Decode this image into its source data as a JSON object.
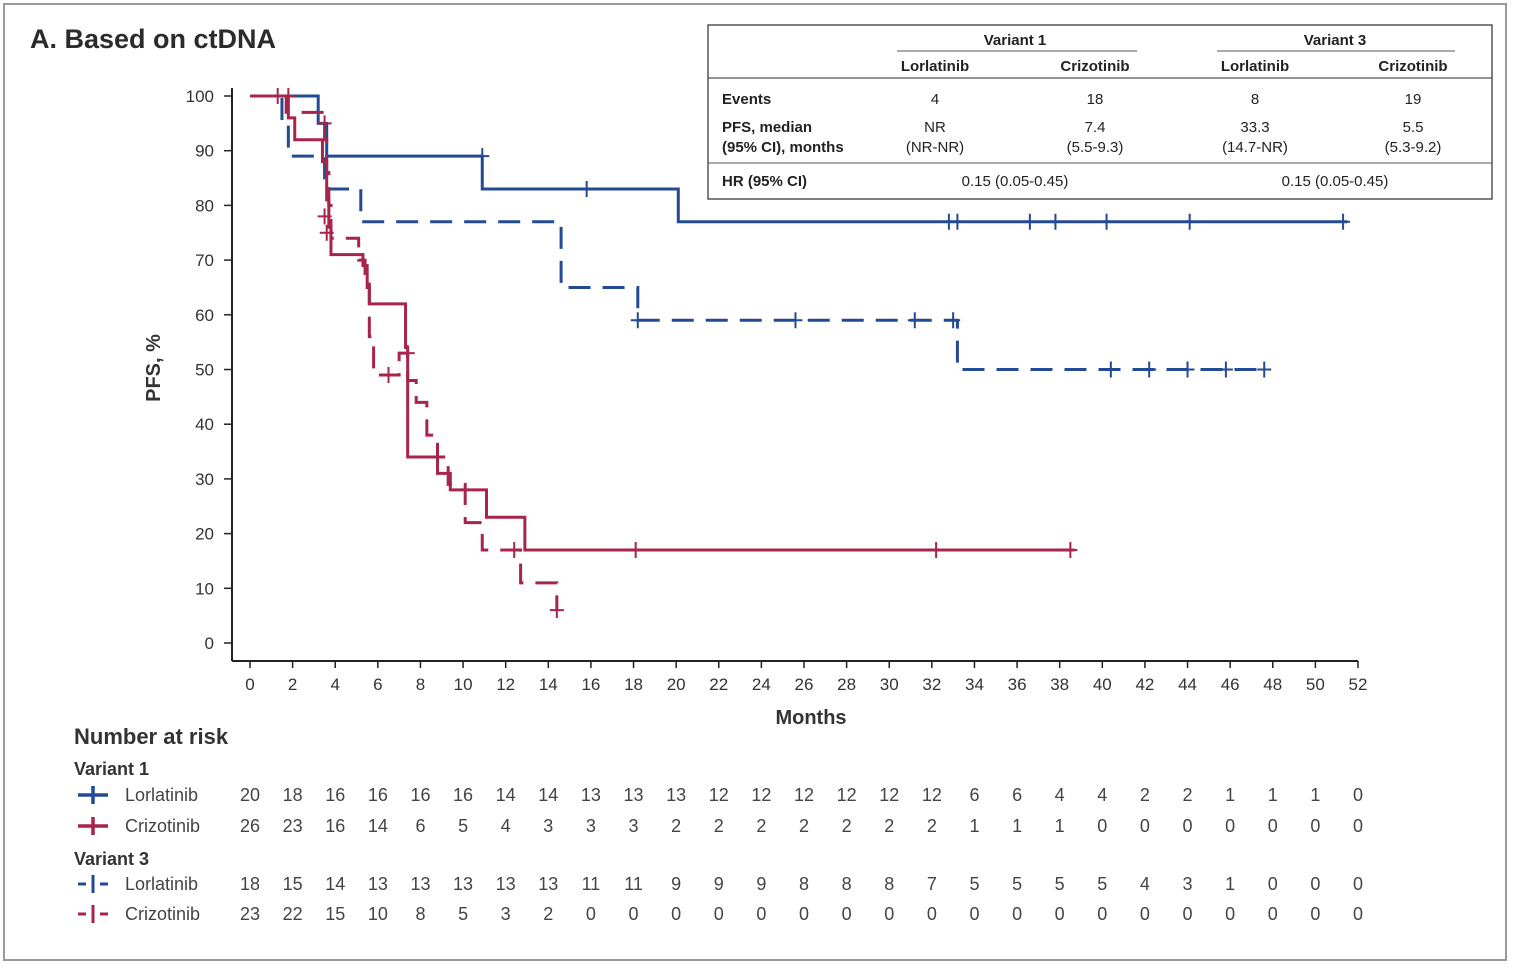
{
  "colors": {
    "lorlatinib": "#234a94",
    "crizotinib": "#a8244b"
  },
  "chart_data": {
    "type": "line",
    "title": "A. Based on ctDNA",
    "xlabel": "Months",
    "ylabel": "PFS, %",
    "xlim": [
      0,
      52
    ],
    "ylim": [
      0,
      100
    ],
    "x_ticks": [
      0,
      2,
      4,
      6,
      8,
      10,
      12,
      14,
      16,
      18,
      20,
      22,
      24,
      26,
      28,
      30,
      32,
      34,
      36,
      38,
      40,
      42,
      44,
      46,
      48,
      50,
      52
    ],
    "y_ticks": [
      0,
      10,
      20,
      30,
      40,
      50,
      60,
      70,
      80,
      90,
      100
    ],
    "series": [
      {
        "name": "Variant 1 Lorlatinib",
        "drug": "lorlatinib",
        "dashed": false,
        "steps": [
          [
            0,
            100
          ],
          [
            3.2,
            95
          ],
          [
            3.6,
            89
          ],
          [
            10.9,
            83
          ],
          [
            20.1,
            77
          ],
          [
            51.5,
            77
          ]
        ],
        "censors": [
          [
            10.9,
            89
          ],
          [
            15.8,
            83
          ],
          [
            32.8,
            77
          ],
          [
            33.2,
            77
          ],
          [
            36.6,
            77
          ],
          [
            37.8,
            77
          ],
          [
            40.2,
            77
          ],
          [
            44.1,
            77
          ],
          [
            51.3,
            77
          ]
        ]
      },
      {
        "name": "Variant 3 Lorlatinib",
        "drug": "lorlatinib",
        "dashed": false,
        "steps": [
          [
            0,
            100
          ],
          [
            1.5,
            95
          ],
          [
            1.8,
            89
          ],
          [
            3.5,
            83
          ],
          [
            5.2,
            77
          ],
          [
            14.6,
            65
          ],
          [
            18.2,
            59
          ],
          [
            33.2,
            50
          ],
          [
            47.6,
            50
          ]
        ],
        "censors": [
          [
            18.2,
            59
          ],
          [
            25.6,
            59
          ],
          [
            31.2,
            59
          ],
          [
            33.0,
            59
          ],
          [
            40.4,
            50
          ],
          [
            42.2,
            50
          ],
          [
            44.0,
            50
          ],
          [
            45.8,
            50
          ],
          [
            47.6,
            50
          ]
        ]
      },
      {
        "name": "Variant 1 Crizotinib",
        "drug": "crizotinib",
        "dashed": false,
        "steps": [
          [
            0,
            100
          ],
          [
            1.8,
            96
          ],
          [
            2.1,
            92
          ],
          [
            3.4,
            88
          ],
          [
            3.6,
            81
          ],
          [
            3.7,
            76
          ],
          [
            3.8,
            71
          ],
          [
            5.3,
            69
          ],
          [
            5.5,
            65
          ],
          [
            5.6,
            62
          ],
          [
            7.3,
            54
          ],
          [
            7.4,
            34
          ],
          [
            8.8,
            31
          ],
          [
            9.4,
            28
          ],
          [
            11.1,
            23
          ],
          [
            12.9,
            17
          ],
          [
            38.7,
            17
          ]
        ],
        "censors": [
          [
            1.8,
            100
          ],
          [
            18.1,
            17
          ],
          [
            32.2,
            17
          ],
          [
            38.5,
            17
          ]
        ]
      },
      {
        "name": "Variant 3 Crizotinib",
        "drug": "crizotinib",
        "dashed": false,
        "steps": [
          [
            0,
            100
          ],
          [
            1.7,
            97
          ],
          [
            3.5,
            92
          ],
          [
            3.6,
            86
          ],
          [
            3.7,
            80
          ],
          [
            3.8,
            74
          ],
          [
            5.1,
            70
          ],
          [
            5.4,
            66
          ],
          [
            5.6,
            56
          ],
          [
            5.8,
            49
          ],
          [
            7.0,
            53
          ],
          [
            7.4,
            48
          ],
          [
            7.8,
            44
          ],
          [
            8.3,
            38
          ],
          [
            8.8,
            34
          ],
          [
            9.3,
            29
          ],
          [
            10.1,
            22
          ],
          [
            10.9,
            17
          ],
          [
            12.7,
            11
          ],
          [
            14.4,
            6
          ],
          [
            14.4,
            6
          ]
        ],
        "censors": [
          [
            1.3,
            100
          ],
          [
            3.5,
            95
          ],
          [
            3.5,
            78
          ],
          [
            3.6,
            75
          ],
          [
            6.5,
            49
          ],
          [
            7.4,
            53
          ],
          [
            12.4,
            17
          ],
          [
            14.4,
            6
          ]
        ]
      }
    ]
  },
  "summary_table": {
    "group_headers": [
      "Variant 1",
      "Variant 3"
    ],
    "col_headers": [
      "Lorlatinib",
      "Crizotinib",
      "Lorlatinib",
      "Crizotinib"
    ],
    "row_events_label": "Events",
    "events": [
      "4",
      "18",
      "8",
      "19"
    ],
    "row_pfs_label_1": "PFS, median",
    "row_pfs_label_2": "(95% CI), months",
    "pfs_median": [
      "NR",
      "7.4",
      "33.3",
      "5.5"
    ],
    "pfs_ci": [
      "(NR-NR)",
      "(5.5-9.3)",
      "(14.7-NR)",
      "(5.3-9.2)"
    ],
    "row_hr_label": "HR (95% CI)",
    "hr": [
      "0.15 (0.05-0.45)",
      "0.15 (0.05-0.45)"
    ]
  },
  "risk_table": {
    "heading": "Number at risk",
    "groups": [
      {
        "label": "Variant 1",
        "rows": [
          {
            "drug": "lorlatinib",
            "dashed": false,
            "label": "Lorlatinib",
            "values": [
              "20",
              "18",
              "16",
              "16",
              "16",
              "16",
              "14",
              "14",
              "13",
              "13",
              "13",
              "12",
              "12",
              "12",
              "12",
              "12",
              "12",
              "6",
              "6",
              "4",
              "4",
              "2",
              "2",
              "1",
              "1",
              "1",
              "0"
            ]
          },
          {
            "drug": "crizotinib",
            "dashed": false,
            "label": "Crizotinib",
            "values": [
              "26",
              "23",
              "16",
              "14",
              "6",
              "5",
              "4",
              "3",
              "3",
              "3",
              "2",
              "2",
              "2",
              "2",
              "2",
              "2",
              "2",
              "1",
              "1",
              "1",
              "0",
              "0",
              "0",
              "0",
              "0",
              "0",
              "0"
            ]
          }
        ]
      },
      {
        "label": "Variant 3",
        "rows": [
          {
            "drug": "lorlatinib",
            "dashed": true,
            "label": "Lorlatinib",
            "values": [
              "18",
              "15",
              "14",
              "13",
              "13",
              "13",
              "13",
              "13",
              "11",
              "11",
              "9",
              "9",
              "9",
              "8",
              "8",
              "8",
              "7",
              "5",
              "5",
              "5",
              "5",
              "4",
              "3",
              "1",
              "0",
              "0",
              "0"
            ]
          },
          {
            "drug": "crizotinib",
            "dashed": true,
            "label": "Crizotinib",
            "values": [
              "23",
              "22",
              "15",
              "10",
              "8",
              "5",
              "3",
              "2",
              "0",
              "0",
              "0",
              "0",
              "0",
              "0",
              "0",
              "0",
              "0",
              "0",
              "0",
              "0",
              "0",
              "0",
              "0",
              "0",
              "0",
              "0",
              "0"
            ]
          }
        ]
      }
    ]
  }
}
